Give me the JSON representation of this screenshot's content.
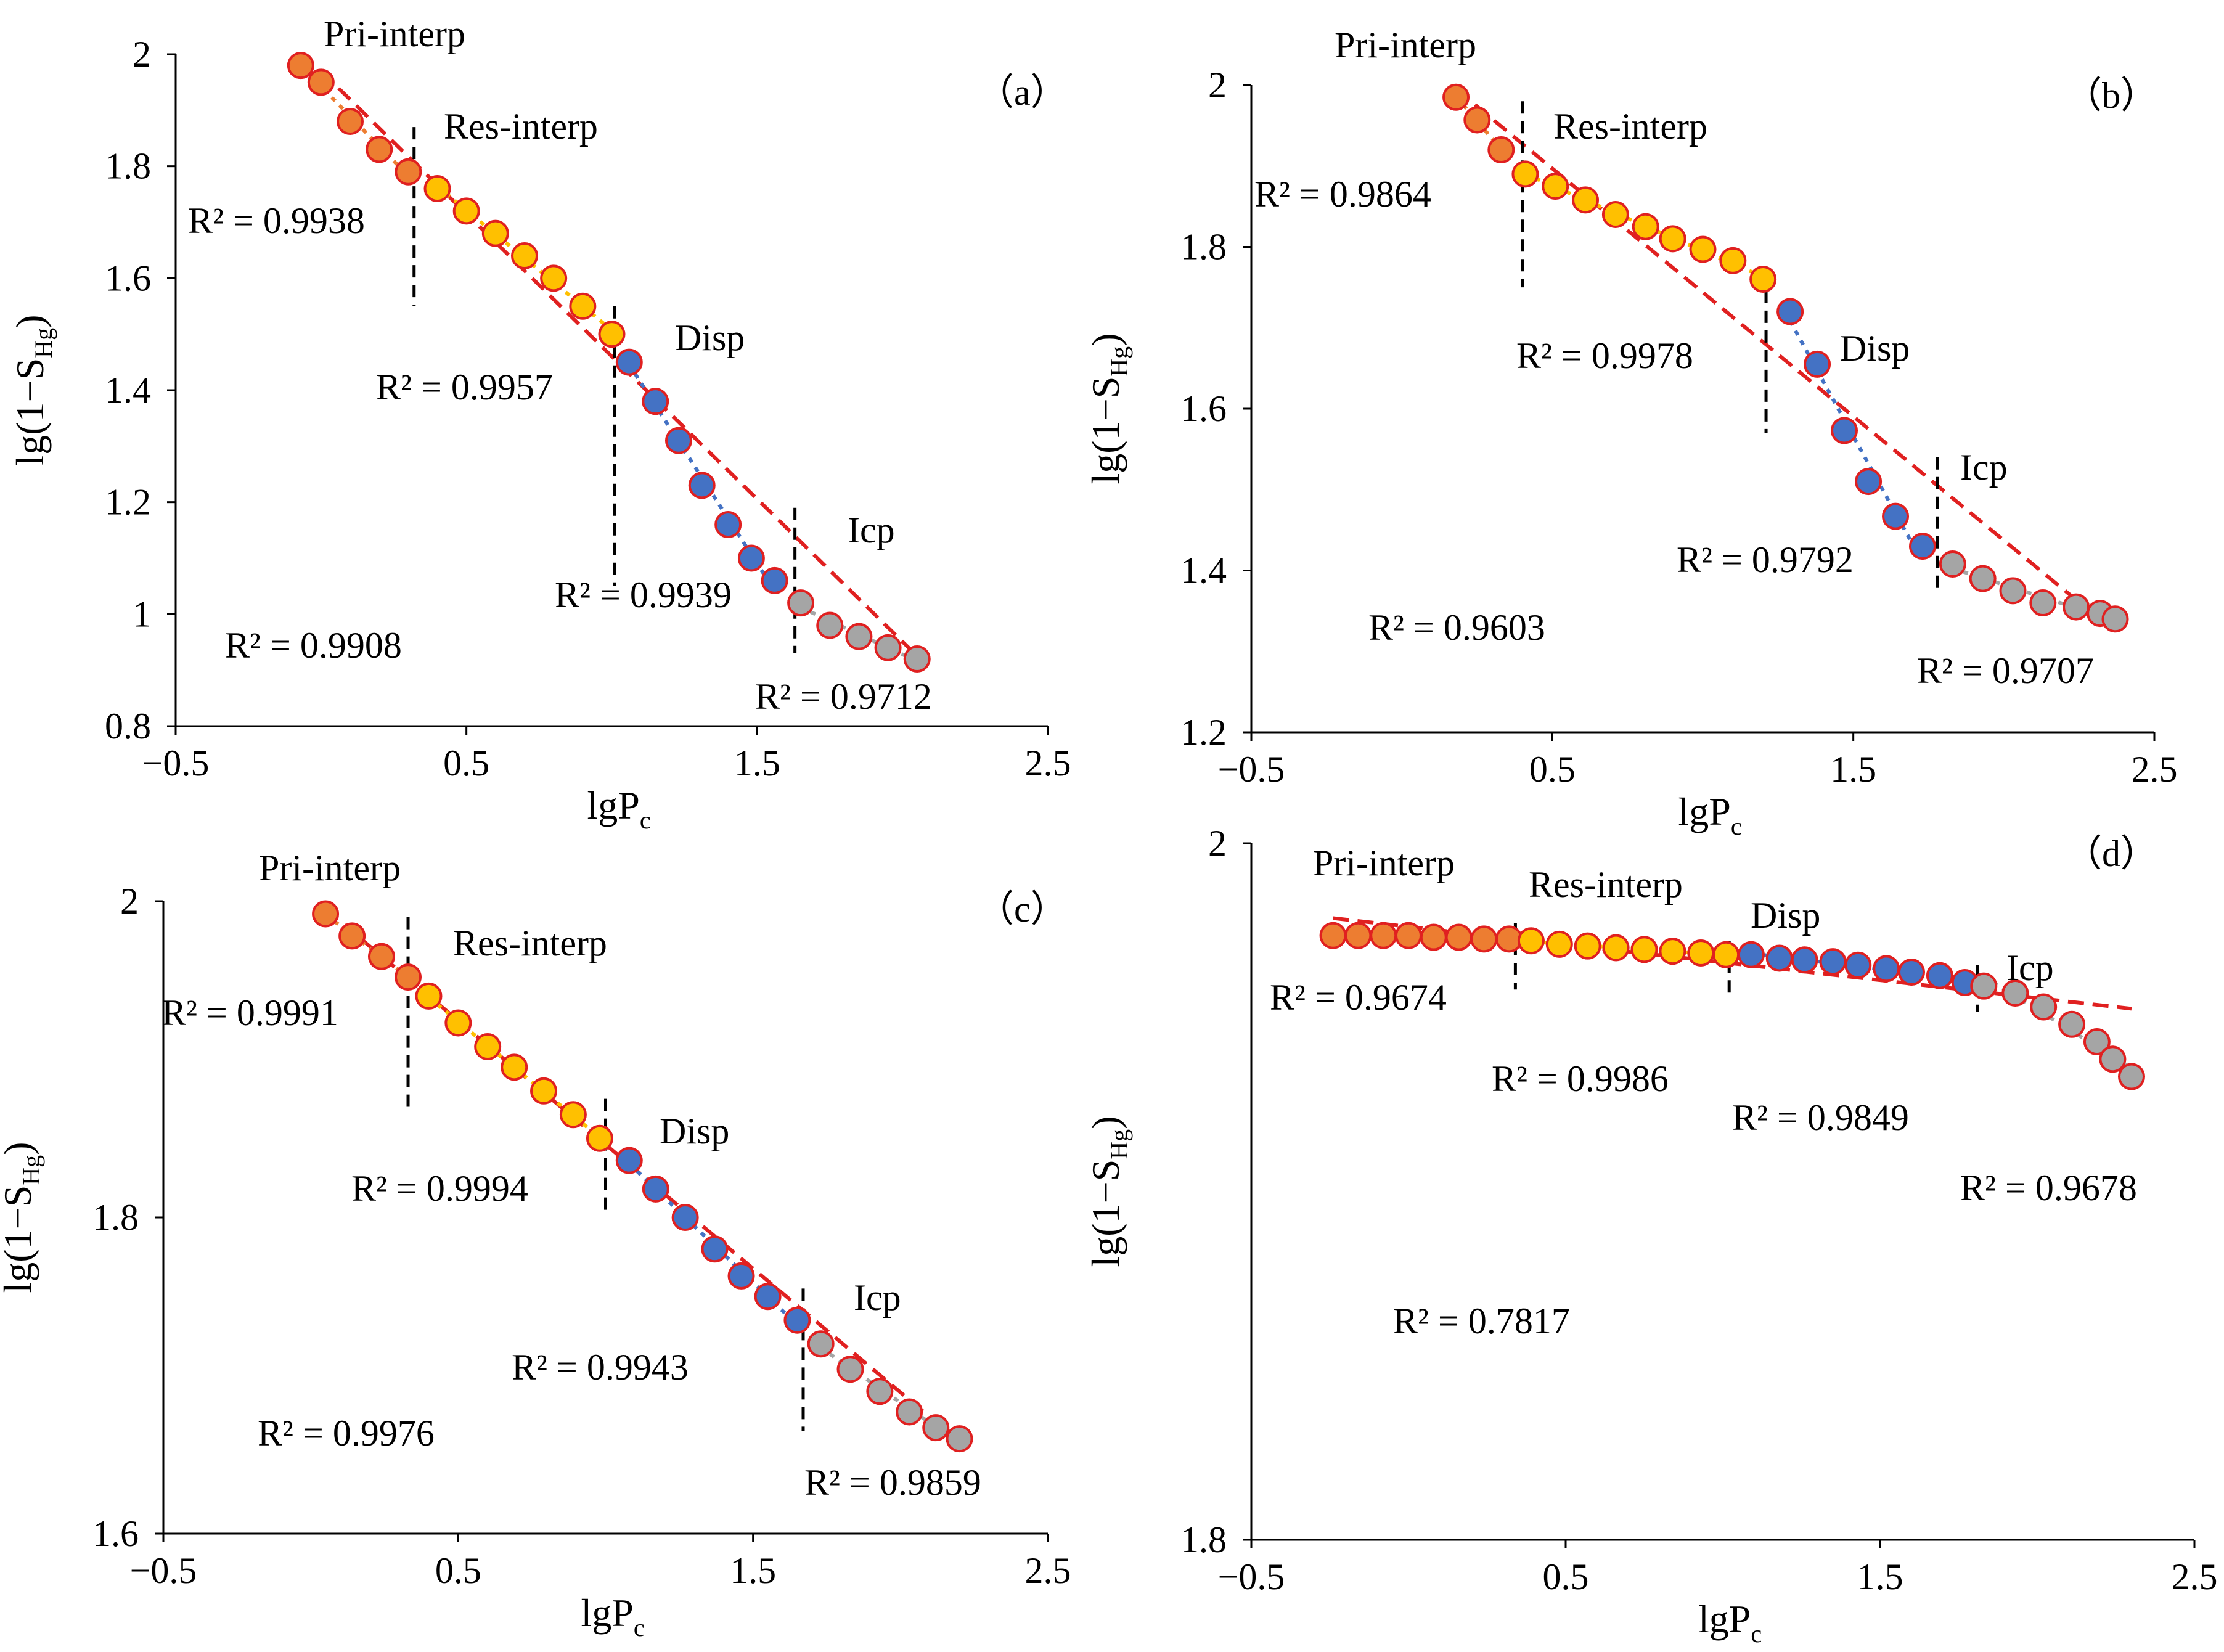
{
  "colors": {
    "pri": "#ED7D31",
    "res": "#FFC000",
    "disp": "#4472C4",
    "icp": "#A5A5A5",
    "outline": "#E02020",
    "fit": "#E02020",
    "disp_fit": "#4472C4",
    "divider": "#000000"
  },
  "chart_data": [
    {
      "type": "scatter",
      "panel_label": "（a）",
      "xlabel": "lgP",
      "xlabel_sub": "c",
      "ylabel": "lg(1−S",
      "ylabel_sub": "Hg",
      "ylabel_end": ")",
      "xlim": [
        -0.5,
        2.5
      ],
      "ylim": [
        0.8,
        2.0
      ],
      "xticks": [
        "−0.5",
        "0.5",
        "1.5",
        "2.5"
      ],
      "xtick_values": [
        -0.5,
        0.5,
        1.5,
        2.5
      ],
      "yticks": [
        "0.8",
        "1",
        "1.2",
        "1.4",
        "1.6",
        "1.8",
        "2"
      ],
      "ytick_values": [
        0.8,
        1.0,
        1.2,
        1.4,
        1.6,
        1.8,
        2.0
      ],
      "series": [
        {
          "name": "Pri-interp",
          "label": "Pri-interp",
          "color": "pri",
          "x": [
            -0.07,
            0.0,
            0.1,
            0.2,
            0.3
          ],
          "y": [
            1.98,
            1.95,
            1.88,
            1.83,
            1.79
          ]
        },
        {
          "name": "Res-interp",
          "label": "Res-interp",
          "color": "res",
          "x": [
            0.4,
            0.5,
            0.6,
            0.7,
            0.8,
            0.9,
            1.0
          ],
          "y": [
            1.76,
            1.72,
            1.68,
            1.64,
            1.6,
            1.55,
            1.5
          ]
        },
        {
          "name": "Disp",
          "label": "Disp",
          "color": "disp",
          "x": [
            1.06,
            1.15,
            1.23,
            1.31,
            1.4,
            1.48,
            1.56
          ],
          "y": [
            1.45,
            1.38,
            1.31,
            1.23,
            1.16,
            1.1,
            1.06
          ]
        },
        {
          "name": "Icp",
          "label": "Icp",
          "color": "icp",
          "x": [
            1.65,
            1.75,
            1.85,
            1.95,
            2.05
          ],
          "y": [
            1.02,
            0.98,
            0.96,
            0.94,
            0.92
          ]
        }
      ],
      "overall_fit": {
        "x": [
          0.0,
          2.08
        ],
        "y": [
          1.97,
          0.91
        ]
      },
      "dividers": [
        0.32,
        1.01,
        1.63
      ],
      "divider_ranges": [
        [
          1.55,
          1.87
        ],
        [
          1.05,
          1.55
        ],
        [
          0.93,
          1.19
        ]
      ],
      "r2": {
        "segments": [
          "R² = 0.9938",
          "R² = 0.9957",
          "R² = 0.9939",
          "R² = 0.9712"
        ],
        "overall": "R² = 0.9908"
      }
    },
    {
      "type": "scatter",
      "panel_label": "（b）",
      "xlabel": "lgP",
      "xlabel_sub": "c",
      "ylabel": "lg(1−S",
      "ylabel_sub": "Hg",
      "ylabel_end": ")",
      "xlim": [
        -0.5,
        2.5
      ],
      "ylim": [
        1.2,
        2.0
      ],
      "xticks": [
        "−0.5",
        "0.5",
        "1.5",
        "2.5"
      ],
      "xtick_values": [
        -0.5,
        0.5,
        1.5,
        2.5
      ],
      "yticks": [
        "1.2",
        "1.4",
        "1.6",
        "1.8",
        "2"
      ],
      "ytick_values": [
        1.2,
        1.4,
        1.6,
        1.8,
        2.0
      ],
      "series": [
        {
          "name": "Pri-interp",
          "label": "Pri-interp",
          "color": "pri",
          "x": [
            0.18,
            0.25,
            0.33
          ],
          "y": [
            1.985,
            1.957,
            1.92
          ]
        },
        {
          "name": "Res-interp",
          "label": "Res-interp",
          "color": "res",
          "x": [
            0.41,
            0.51,
            0.61,
            0.71,
            0.81,
            0.9,
            1.0,
            1.1,
            1.2
          ],
          "y": [
            1.89,
            1.875,
            1.858,
            1.84,
            1.825,
            1.81,
            1.797,
            1.783,
            1.76
          ]
        },
        {
          "name": "Disp",
          "label": "Disp",
          "color": "disp",
          "x": [
            1.29,
            1.38,
            1.47,
            1.55,
            1.64,
            1.73
          ],
          "y": [
            1.72,
            1.655,
            1.573,
            1.51,
            1.467,
            1.43
          ]
        },
        {
          "name": "Icp",
          "label": "Icp",
          "color": "icp",
          "x": [
            1.83,
            1.93,
            2.03,
            2.13,
            2.24,
            2.32,
            2.37
          ],
          "y": [
            1.408,
            1.39,
            1.375,
            1.36,
            1.355,
            1.347,
            1.34
          ]
        }
      ],
      "overall_fit": {
        "x": [
          0.18,
          2.35
        ],
        "y": [
          1.995,
          1.33
        ]
      },
      "dividers": [
        0.4,
        1.21,
        1.78
      ],
      "divider_ranges": [
        [
          1.75,
          1.98
        ],
        [
          1.57,
          1.77
        ],
        [
          1.37,
          1.54
        ]
      ],
      "r2": {
        "segments": [
          "R² = 0.9864",
          "R² = 0.9978",
          "R² = 0.9792",
          "R² = 0.9707"
        ],
        "overall": "R² = 0.9603"
      }
    },
    {
      "type": "scatter",
      "panel_label": "（c）",
      "xlabel": "lgP",
      "xlabel_sub": "c",
      "ylabel": "lg(1−S",
      "ylabel_sub": "Hg",
      "ylabel_end": ")",
      "xlim": [
        -0.5,
        2.5
      ],
      "ylim": [
        1.6,
        2.0
      ],
      "xticks": [
        "−0.5",
        "0.5",
        "1.5",
        "2.5"
      ],
      "xtick_values": [
        -0.5,
        0.5,
        1.5,
        2.5
      ],
      "yticks": [
        "1.6",
        "1.8",
        "2"
      ],
      "ytick_values": [
        1.6,
        1.8,
        2.0
      ],
      "series": [
        {
          "name": "Pri-interp",
          "label": "Pri-interp",
          "color": "pri",
          "x": [
            0.05,
            0.14,
            0.24,
            0.33
          ],
          "y": [
            1.992,
            1.978,
            1.965,
            1.952
          ]
        },
        {
          "name": "Res-interp",
          "label": "Res-interp",
          "color": "res",
          "x": [
            0.4,
            0.5,
            0.6,
            0.69,
            0.79,
            0.89,
            0.98
          ],
          "y": [
            1.94,
            1.923,
            1.908,
            1.895,
            1.88,
            1.865,
            1.85
          ]
        },
        {
          "name": "Disp",
          "label": "Disp",
          "color": "disp",
          "x": [
            1.08,
            1.17,
            1.27,
            1.37,
            1.46,
            1.55,
            1.65
          ],
          "y": [
            1.836,
            1.818,
            1.8,
            1.78,
            1.763,
            1.75,
            1.735
          ]
        },
        {
          "name": "Icp",
          "label": "Icp",
          "color": "icp",
          "x": [
            1.73,
            1.83,
            1.93,
            2.03,
            2.12,
            2.2
          ],
          "y": [
            1.72,
            1.704,
            1.69,
            1.677,
            1.667,
            1.66
          ]
        }
      ],
      "overall_fit": {
        "x": [
          0.05,
          2.2
        ],
        "y": [
          1.995,
          1.658
        ]
      },
      "dividers": [
        0.33,
        1.0,
        1.67
      ],
      "divider_ranges": [
        [
          1.87,
          1.99
        ],
        [
          1.8,
          1.875
        ],
        [
          1.665,
          1.755
        ]
      ],
      "r2": {
        "segments": [
          "R² = 0.9991",
          "R² = 0.9994",
          "R² = 0.9943",
          "R² = 0.9859"
        ],
        "overall": "R² = 0.9976"
      }
    },
    {
      "type": "scatter",
      "panel_label": "（d）",
      "xlabel": "lgP",
      "xlabel_sub": "c",
      "ylabel": "lg(1−S",
      "ylabel_sub": "Hg",
      "ylabel_end": ")",
      "xlim": [
        -0.5,
        2.5
      ],
      "ylim": [
        1.8,
        2.0
      ],
      "xticks": [
        "−0.5",
        "0.5",
        "1.5",
        "2.5"
      ],
      "xtick_values": [
        -0.5,
        0.5,
        1.5,
        2.5
      ],
      "yticks": [
        "1.8",
        "2"
      ],
      "ytick_values": [
        1.8,
        2.0
      ],
      "series": [
        {
          "name": "Pri-interp",
          "label": "Pri-interp",
          "color": "pri",
          "x": [
            -0.24,
            -0.16,
            -0.08,
            0.0,
            0.08,
            0.16,
            0.24,
            0.32
          ],
          "y": [
            1.9735,
            1.9735,
            1.9735,
            1.9735,
            1.973,
            1.973,
            1.9725,
            1.9725
          ]
        },
        {
          "name": "Res-interp",
          "label": "Res-interp",
          "color": "res",
          "x": [
            0.39,
            0.48,
            0.57,
            0.66,
            0.75,
            0.84,
            0.93,
            1.01
          ],
          "y": [
            1.972,
            1.971,
            1.9705,
            1.97,
            1.9695,
            1.969,
            1.9685,
            1.968
          ]
        },
        {
          "name": "Disp",
          "label": "Disp",
          "color": "disp",
          "x": [
            1.09,
            1.18,
            1.26,
            1.35,
            1.43,
            1.52,
            1.6,
            1.69,
            1.77
          ],
          "y": [
            1.968,
            1.967,
            1.9665,
            1.966,
            1.965,
            1.964,
            1.963,
            1.962,
            1.96
          ]
        },
        {
          "name": "Icp",
          "label": "Icp",
          "color": "icp",
          "x": [
            1.83,
            1.93,
            2.02,
            2.11,
            2.19,
            2.24,
            2.3
          ],
          "y": [
            1.959,
            1.957,
            1.953,
            1.948,
            1.943,
            1.938,
            1.933
          ]
        }
      ],
      "overall_fit": {
        "x": [
          -0.24,
          2.3
        ],
        "y": [
          1.9785,
          1.9525
        ]
      },
      "dividers": [
        0.34,
        1.02,
        1.81
      ],
      "divider_ranges": [
        [
          1.958,
          1.977
        ],
        [
          1.955,
          1.972
        ],
        [
          1.9515,
          1.965
        ]
      ],
      "r2": {
        "segments": [
          "R² = 0.9674",
          "R² = 0.9986",
          "R² = 0.9849",
          "R² = 0.9678"
        ],
        "overall": "R² = 0.7817"
      }
    }
  ]
}
